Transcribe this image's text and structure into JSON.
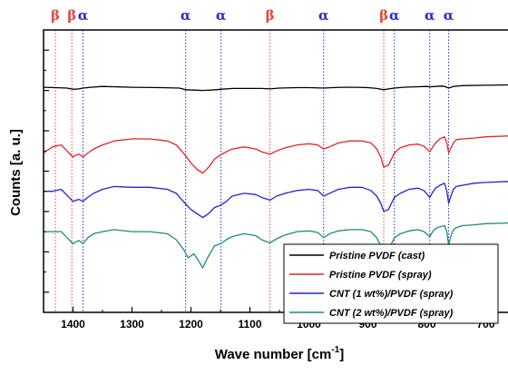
{
  "chart_data": {
    "type": "line",
    "xlabel_main": "Wave number [cm",
    "xlabel_sup": "-1",
    "xlabel_end": "]",
    "ylabel": "Counts [a. u.]",
    "xlim": [
      1450,
      650
    ],
    "x_reversed": true,
    "x_ticks": [
      1400,
      1300,
      1200,
      1100,
      1000,
      900,
      800,
      700
    ],
    "y_ticks_labeled": false,
    "grid": false,
    "legend_position": "bottom-right",
    "phase_markers": [
      {
        "label": "β",
        "x": 1430,
        "color": "#e8453c"
      },
      {
        "label": "β",
        "x": 1402,
        "color": "#e8453c"
      },
      {
        "label": "α",
        "x": 1383,
        "color": "#2a2ad8"
      },
      {
        "label": "α",
        "x": 1209,
        "color": "#2a2ad8"
      },
      {
        "label": "α",
        "x": 1149,
        "color": "#2a2ad8"
      },
      {
        "label": "β",
        "x": 1066,
        "color": "#e8453c"
      },
      {
        "label": "α",
        "x": 975,
        "color": "#2a2ad8"
      },
      {
        "label": "β",
        "x": 873,
        "color": "#e8453c"
      },
      {
        "label": "α",
        "x": 855,
        "color": "#2a2ad8"
      },
      {
        "label": "α",
        "x": 795,
        "color": "#2a2ad8"
      },
      {
        "label": "α",
        "x": 763,
        "color": "#2a2ad8"
      }
    ],
    "series": [
      {
        "name": "Pristine PVDF (cast)",
        "color": "#000000",
        "x": [
          1450,
          1430,
          1410,
          1400,
          1390,
          1383,
          1370,
          1350,
          1300,
          1250,
          1220,
          1209,
          1195,
          1180,
          1165,
          1149,
          1130,
          1100,
          1080,
          1066,
          1050,
          1020,
          1000,
          975,
          960,
          940,
          920,
          900,
          885,
          873,
          865,
          855,
          840,
          820,
          800,
          795,
          785,
          775,
          770,
          763,
          755,
          740,
          700,
          650
        ],
        "y": [
          0.92,
          0.93,
          0.94,
          0.97,
          0.96,
          0.94,
          0.92,
          0.9,
          0.92,
          0.93,
          0.94,
          0.98,
          0.99,
          1.0,
          0.99,
          0.97,
          0.95,
          0.95,
          0.95,
          0.96,
          0.94,
          0.93,
          0.93,
          0.94,
          0.93,
          0.92,
          0.92,
          0.93,
          0.95,
          0.98,
          0.96,
          0.94,
          0.92,
          0.91,
          0.9,
          0.91,
          0.9,
          0.89,
          0.9,
          0.94,
          0.9,
          0.88,
          0.87,
          0.86
        ]
      },
      {
        "name": "Pristine PVDF (spray)",
        "color": "#e8202a",
        "x": [
          1450,
          1435,
          1420,
          1410,
          1400,
          1395,
          1390,
          1383,
          1375,
          1365,
          1350,
          1330,
          1300,
          1270,
          1240,
          1225,
          1210,
          1200,
          1190,
          1180,
          1170,
          1160,
          1150,
          1140,
          1130,
          1110,
          1090,
          1080,
          1066,
          1055,
          1040,
          1020,
          1000,
          985,
          975,
          965,
          950,
          930,
          910,
          895,
          885,
          878,
          873,
          865,
          860,
          855,
          845,
          830,
          815,
          805,
          795,
          790,
          785,
          778,
          770,
          766,
          763,
          760,
          755,
          750,
          740,
          720,
          700,
          650
        ],
        "y": [
          2.55,
          2.4,
          2.35,
          2.5,
          2.65,
          2.6,
          2.58,
          2.65,
          2.55,
          2.45,
          2.35,
          2.25,
          2.2,
          2.2,
          2.25,
          2.35,
          2.6,
          2.8,
          2.95,
          3.05,
          2.9,
          2.7,
          2.6,
          2.52,
          2.45,
          2.4,
          2.45,
          2.52,
          2.58,
          2.5,
          2.42,
          2.35,
          2.32,
          2.35,
          2.45,
          2.4,
          2.3,
          2.25,
          2.25,
          2.3,
          2.45,
          2.65,
          2.9,
          2.85,
          2.7,
          2.55,
          2.42,
          2.35,
          2.33,
          2.38,
          2.52,
          2.4,
          2.3,
          2.2,
          2.15,
          2.3,
          2.55,
          2.45,
          2.3,
          2.22,
          2.2,
          2.18,
          2.15,
          2.12
        ]
      },
      {
        "name": "CNT (1 wt%)/PVDF (spray)",
        "color": "#2222d8",
        "x": [
          1450,
          1435,
          1420,
          1410,
          1400,
          1395,
          1390,
          1383,
          1375,
          1365,
          1350,
          1330,
          1300,
          1270,
          1240,
          1225,
          1210,
          1200,
          1190,
          1180,
          1170,
          1160,
          1150,
          1140,
          1130,
          1110,
          1090,
          1080,
          1066,
          1055,
          1040,
          1020,
          1000,
          985,
          975,
          965,
          950,
          930,
          910,
          895,
          885,
          878,
          873,
          865,
          860,
          855,
          845,
          830,
          815,
          805,
          795,
          790,
          785,
          778,
          770,
          766,
          763,
          760,
          755,
          750,
          740,
          720,
          700,
          650
        ],
        "y": [
          3.5,
          3.5,
          3.45,
          3.6,
          3.75,
          3.72,
          3.7,
          3.75,
          3.65,
          3.55,
          3.45,
          3.38,
          3.4,
          3.4,
          3.45,
          3.55,
          3.8,
          3.95,
          4.05,
          4.15,
          4.05,
          3.9,
          3.85,
          3.75,
          3.62,
          3.55,
          3.58,
          3.65,
          3.72,
          3.62,
          3.55,
          3.48,
          3.45,
          3.48,
          3.62,
          3.55,
          3.45,
          3.4,
          3.4,
          3.48,
          3.62,
          3.8,
          4.0,
          3.95,
          3.8,
          3.65,
          3.55,
          3.45,
          3.42,
          3.48,
          3.65,
          3.52,
          3.42,
          3.35,
          3.3,
          3.5,
          3.8,
          3.65,
          3.45,
          3.38,
          3.35,
          3.3,
          3.28,
          3.25
        ]
      },
      {
        "name": "CNT (2 wt%)/PVDF (spray)",
        "color": "#1a8a82",
        "x": [
          1450,
          1435,
          1420,
          1410,
          1400,
          1395,
          1390,
          1383,
          1375,
          1365,
          1350,
          1330,
          1300,
          1270,
          1240,
          1225,
          1212,
          1205,
          1195,
          1188,
          1180,
          1172,
          1160,
          1150,
          1140,
          1130,
          1110,
          1090,
          1080,
          1066,
          1055,
          1040,
          1020,
          1000,
          985,
          975,
          965,
          950,
          930,
          910,
          895,
          885,
          878,
          873,
          865,
          860,
          855,
          845,
          830,
          815,
          805,
          795,
          790,
          785,
          778,
          770,
          766,
          763,
          760,
          755,
          750,
          740,
          720,
          700,
          650
        ],
        "y": [
          4.5,
          4.5,
          4.5,
          4.65,
          4.8,
          4.75,
          4.72,
          4.8,
          4.65,
          4.55,
          4.5,
          4.45,
          4.5,
          4.5,
          4.55,
          4.7,
          4.95,
          5.15,
          5.05,
          5.2,
          5.4,
          5.15,
          4.85,
          4.8,
          4.7,
          4.62,
          4.55,
          4.6,
          4.7,
          4.78,
          4.68,
          4.58,
          4.5,
          4.48,
          4.52,
          4.65,
          4.55,
          4.48,
          4.45,
          4.45,
          4.5,
          4.65,
          4.85,
          5.05,
          4.95,
          4.8,
          4.65,
          4.55,
          4.48,
          4.45,
          4.5,
          4.62,
          4.5,
          4.42,
          4.38,
          4.35,
          4.5,
          4.85,
          4.65,
          4.45,
          4.4,
          4.35,
          4.33,
          4.3,
          4.28
        ]
      }
    ]
  }
}
